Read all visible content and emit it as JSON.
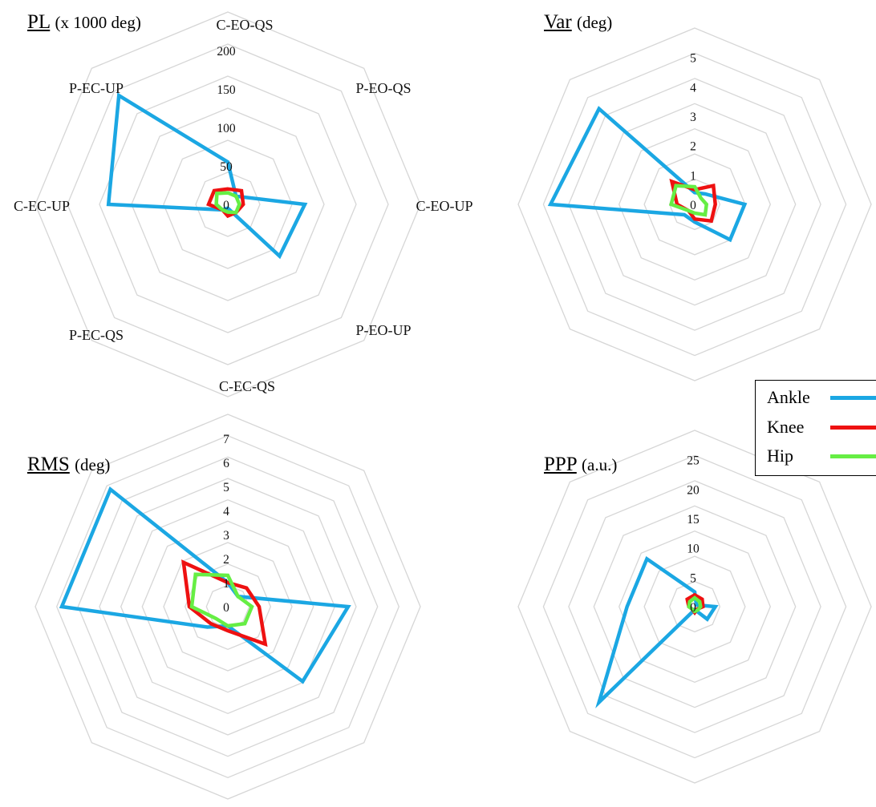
{
  "colors": {
    "grid": "#d6d6d6",
    "ankle": "#1ba7e3",
    "knee": "#ee1111",
    "hip": "#66ee44"
  },
  "legend": {
    "entries": [
      "Ankle",
      "Knee",
      "Hip"
    ]
  },
  "chart_data": [
    {
      "type": "radar",
      "title": "PL",
      "unit": "(x 1000 deg)",
      "categories": [
        "C-EO-QS",
        "P-EO-QS",
        "C-EO-UP",
        "P-EO-UP",
        "C-EC-QS",
        "P-EC-QS",
        "C-EC-UP",
        "P-EC-UP"
      ],
      "category_labels_shown": true,
      "ticks": [
        0,
        50,
        100,
        150,
        200
      ],
      "rmax": 250,
      "series": [
        {
          "name": "Ankle",
          "values": [
            55,
            15,
            100,
            95,
            5,
            10,
            155,
            200
          ]
        },
        {
          "name": "Knee",
          "values": [
            20,
            25,
            20,
            15,
            15,
            10,
            25,
            25
          ]
        },
        {
          "name": "Hip",
          "values": [
            15,
            15,
            15,
            15,
            10,
            10,
            15,
            20
          ]
        }
      ]
    },
    {
      "type": "radar",
      "title": "Var",
      "unit": "(deg)",
      "categories": [
        "C-EO-QS",
        "P-EO-QS",
        "C-EO-UP",
        "P-EO-UP",
        "C-EC-QS",
        "P-EC-QS",
        "C-EC-UP",
        "P-EC-UP"
      ],
      "category_labels_shown": false,
      "ticks": [
        0,
        1,
        2,
        3,
        4,
        5
      ],
      "rmax": 6,
      "series": [
        {
          "name": "Ankle",
          "values": [
            0.4,
            0.5,
            1.7,
            1.7,
            0.6,
            0.5,
            4.9,
            4.6
          ]
        },
        {
          "name": "Knee",
          "values": [
            0.5,
            0.9,
            0.7,
            0.8,
            0.5,
            0.3,
            0.6,
            1.1
          ]
        },
        {
          "name": "Hip",
          "values": [
            0.6,
            0.3,
            0.4,
            0.5,
            0.3,
            0.3,
            0.8,
            0.9
          ]
        }
      ]
    },
    {
      "type": "radar",
      "title": "RMS",
      "unit": "(deg)",
      "categories": [
        "C-EO-QS",
        "P-EO-QS",
        "C-EO-UP",
        "P-EO-UP",
        "C-EC-QS",
        "P-EC-QS",
        "C-EC-UP",
        "P-EC-UP"
      ],
      "category_labels_shown": false,
      "ticks": [
        0,
        1,
        2,
        3,
        4,
        5,
        6,
        7
      ],
      "rmax": 8,
      "series": [
        {
          "name": "Ankle",
          "values": [
            1.0,
            0.6,
            5.0,
            4.4,
            0.8,
            1.2,
            6.9,
            6.9
          ]
        },
        {
          "name": "Knee",
          "values": [
            1.0,
            1.1,
            1.3,
            2.2,
            1.0,
            1.0,
            1.6,
            2.6
          ]
        },
        {
          "name": "Hip",
          "values": [
            1.3,
            0.6,
            1.0,
            1.0,
            0.8,
            0.7,
            1.5,
            1.9
          ]
        }
      ]
    },
    {
      "type": "radar",
      "title": "PPP",
      "unit": "(a.u.)",
      "categories": [
        "C-EO-QS",
        "P-EO-QS",
        "C-EO-UP",
        "P-EO-UP",
        "C-EC-QS",
        "P-EC-QS",
        "C-EC-UP",
        "P-EC-UP"
      ],
      "category_labels_shown": false,
      "ticks": [
        0,
        5,
        10,
        15,
        20,
        25
      ],
      "rmax": 30,
      "series": [
        {
          "name": "Ankle",
          "values": [
            2.5,
            0.4,
            3.5,
            3.0,
            0.5,
            23.0,
            11.5,
            11.5
          ]
        },
        {
          "name": "Knee",
          "values": [
            2.0,
            1.8,
            1.4,
            0.6,
            1.0,
            0.6,
            1.0,
            1.8
          ]
        },
        {
          "name": "Hip",
          "values": [
            1.5,
            1.2,
            1.0,
            0.8,
            0.8,
            0.6,
            1.0,
            1.2
          ]
        }
      ]
    }
  ]
}
